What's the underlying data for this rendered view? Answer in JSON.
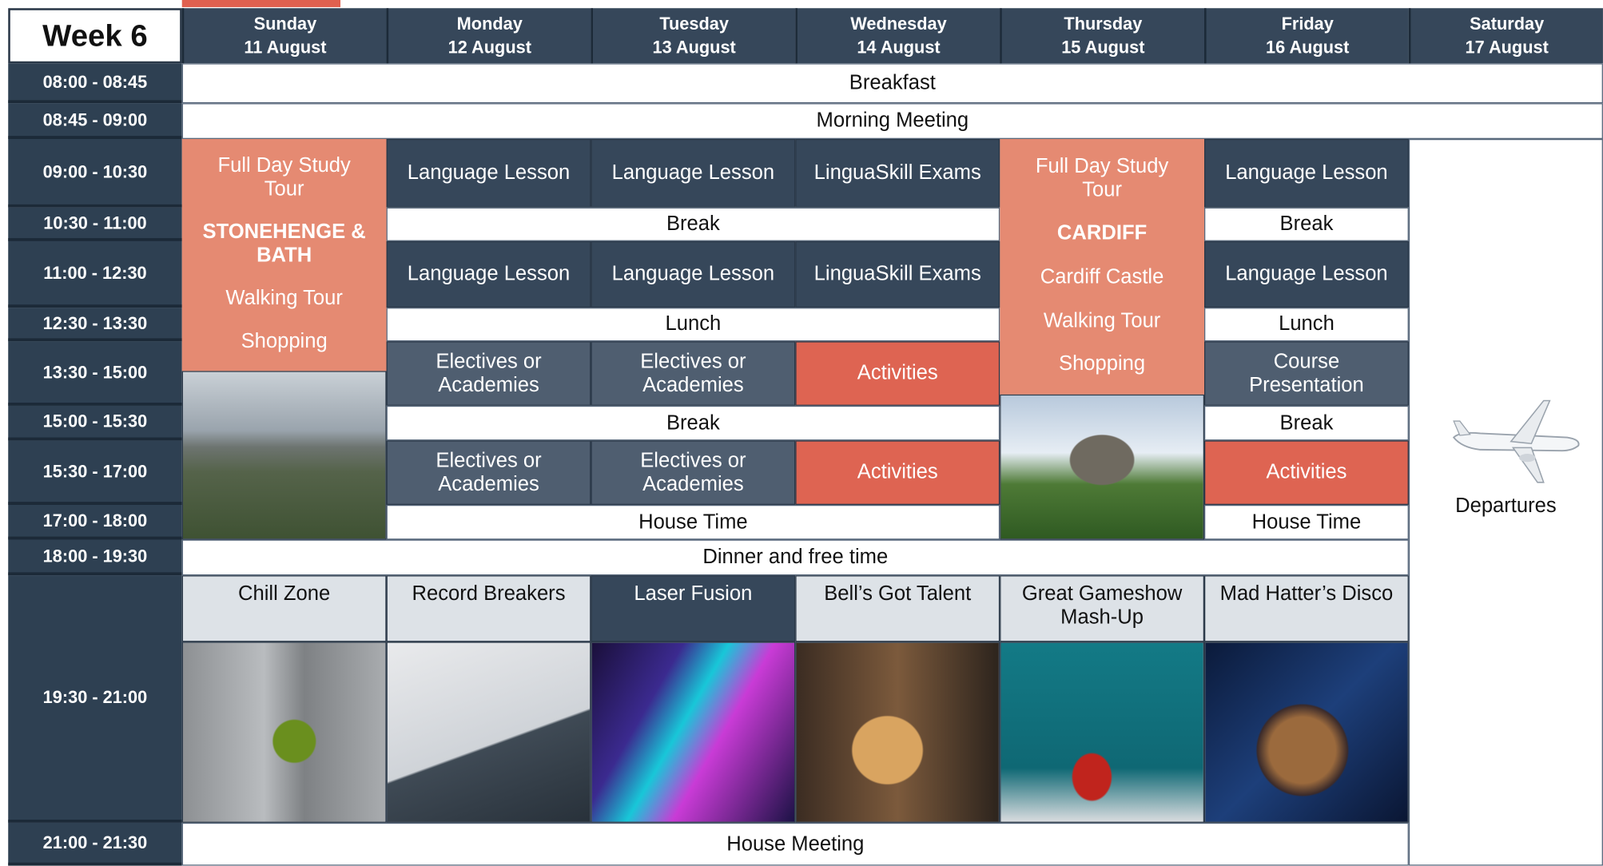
{
  "header": {
    "week": "Week 6",
    "days": [
      {
        "day": "Sunday",
        "date": "11 August"
      },
      {
        "day": "Monday",
        "date": "12 August"
      },
      {
        "day": "Tuesday",
        "date": "13 August"
      },
      {
        "day": "Wednesday",
        "date": "14 August"
      },
      {
        "day": "Thursday",
        "date": "15 August"
      },
      {
        "day": "Friday",
        "date": "16 August"
      },
      {
        "day": "Saturday",
        "date": "17 August"
      }
    ]
  },
  "times": [
    "08:00 - 08:45",
    "08:45 - 09:00",
    "09:00 - 10:30",
    "10:30 - 11:00",
    "11:00 - 12:30",
    "12:30 - 13:30",
    "13:30 - 15:00",
    "15:00 - 15:30",
    "15:30 - 17:00",
    "17:00 - 18:00",
    "18:00 - 19:30",
    "19:30 - 21:00",
    "21:00 - 21:30"
  ],
  "common": {
    "breakfast": "Breakfast",
    "morning_meeting": "Morning Meeting",
    "dinner": "Dinner and free time",
    "house_meeting": "House Meeting"
  },
  "sunday_tour": {
    "title": "Full Day Study Tour",
    "destination": "STONEHENGE & BATH",
    "items": [
      "Walking Tour",
      "Shopping"
    ]
  },
  "thursday_tour": {
    "title": "Full Day Study Tour",
    "destination": "CARDIFF",
    "items": [
      "Cardiff Castle",
      "Walking Tour",
      "Shopping"
    ]
  },
  "blocks": [
    "Language Lesson",
    "Language Lesson",
    "LinguaSkill Exams",
    "Language Lesson",
    "Break",
    "Break",
    "Language Lesson",
    "Language Lesson",
    "LinguaSkill Exams",
    "Language Lesson",
    "Lunch",
    "Lunch",
    "Electives or Academies",
    "Electives or Academies",
    "Activities",
    "Course Presentation",
    "Break",
    "Break",
    "Electives or Academies",
    "Electives or Academies",
    "Activities",
    "Activities",
    "House Time",
    "House Time"
  ],
  "evening": [
    "Chill Zone",
    "Record Breakers",
    "Laser Fusion",
    "Bell’s Got Talent",
    "Great Gameshow Mash-Up",
    "Mad Hatter’s Disco"
  ],
  "departures": "Departures"
}
